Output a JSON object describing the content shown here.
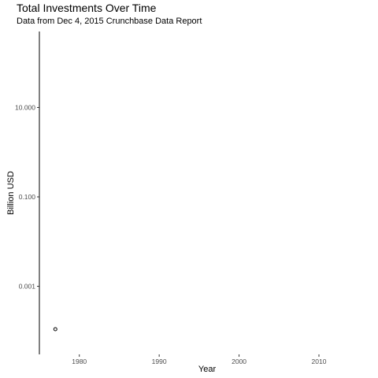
{
  "chart_data": {
    "type": "scatter",
    "title": "Total Investments Over Time",
    "subtitle": "Data from Dec  4, 2015 Crunchbase Data Report",
    "xlabel": "Year",
    "ylabel": "Billion USD",
    "x_scale": "linear",
    "y_scale": "log10",
    "xlim": [
      1975,
      2017
    ],
    "ylim": [
      3e-05,
      500
    ],
    "x_ticks": [
      1980,
      1990,
      2000,
      2010
    ],
    "x_tick_labels": [
      "1980",
      "1990",
      "2000",
      "2010"
    ],
    "y_ticks": [
      0.001,
      0.1,
      10
    ],
    "y_tick_labels": [
      "0.001",
      "0.100",
      "10.000"
    ],
    "grid": false,
    "legend": "none",
    "marker": "open-circle",
    "color": "#000000",
    "points": [
      {
        "x": 1977,
        "y": 0.00011
      }
    ]
  }
}
